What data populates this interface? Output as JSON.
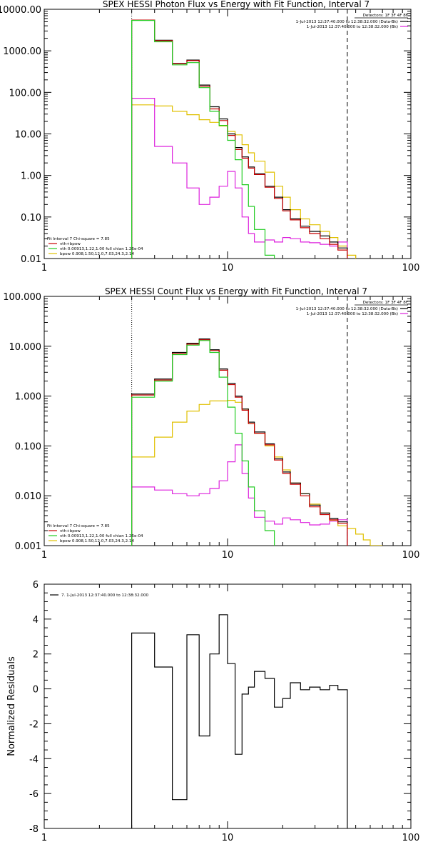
{
  "colors": {
    "data": "#000000",
    "total": "#c80000",
    "vth": "#22cc22",
    "bpow": "#e0c000",
    "bk": "#dd22dd"
  },
  "chart_data": [
    {
      "type": "line",
      "id": "photon",
      "title": "SPEX HESSI Photon Flux vs Energy with Fit Function, Interval 7",
      "xscale": "log",
      "yscale": "log",
      "xlim": [
        1,
        100
      ],
      "ylim": [
        0.01,
        10000
      ],
      "x_tick_labels": [
        "1",
        "10",
        "100"
      ],
      "y_tick_labels": [
        "10000.00",
        "1000.00",
        "100.00",
        "10.00",
        "1.00",
        "0.10",
        "0.01"
      ],
      "fit_range_kev": [
        3,
        45
      ],
      "legend_top_right": [
        "Detectors: 1F 3F 4F 8F",
        "1-Jul-2013 12:37:40.000 to 12:38:32.000 (Data-Bk)",
        "1-Jul-2013 12:37:40.000 to 12:38:32.000 (Bk)"
      ],
      "legend_bottom_left": [
        "Fit Interval 7   Chi-square = 7.85",
        "vth+bpow",
        "vth 0.00913,1.22,1.00  full chian 1.26e-04",
        "bpow 0.908,1.50,12.0,7.03,24.3,2.14"
      ],
      "bin_edges": [
        3,
        4,
        5,
        6,
        7,
        8,
        9,
        10,
        11,
        12,
        13,
        14,
        16,
        18,
        20,
        22,
        25,
        28,
        32,
        36,
        40,
        45,
        50
      ],
      "series": [
        {
          "name": "1-Jul-2013 12:37:40.000 to 12:38:32.000 (Data-Bk)",
          "color": "#000000",
          "values": [
            5500,
            1800,
            500,
            600,
            150,
            45,
            23,
            10,
            4.7,
            2.8,
            1.6,
            1.1,
            0.55,
            0.3,
            0.15,
            0.09,
            0.06,
            0.045,
            0.035,
            0.025,
            0.018,
            null
          ]
        },
        {
          "name": "vth+bpow",
          "color": "#c80000",
          "values": [
            5500,
            1750,
            490,
            580,
            140,
            40,
            21,
            9.2,
            4.2,
            2.6,
            1.5,
            1.05,
            0.52,
            0.28,
            0.14,
            0.085,
            0.055,
            0.04,
            0.03,
            0.022,
            0.016,
            null
          ]
        },
        {
          "name": "vth",
          "color": "#22cc22",
          "values": [
            5400,
            1650,
            460,
            520,
            130,
            35,
            16,
            7,
            2.4,
            0.6,
            0.18,
            0.05,
            0.012,
            null,
            null,
            null,
            null,
            null,
            null,
            null,
            null,
            null
          ]
        },
        {
          "name": "bpow",
          "color": "#e0c000",
          "values": [
            50,
            47,
            35,
            29,
            22,
            19,
            15.5,
            11.5,
            9.5,
            5.5,
            3.5,
            2.2,
            1.2,
            0.55,
            0.3,
            0.15,
            0.09,
            0.065,
            0.045,
            0.032,
            0.02,
            0.012
          ]
        },
        {
          "name": "1-Jul-2013 12:37:40.000 to 12:38:32.000 (Bk)",
          "color": "#dd22dd",
          "values": [
            72,
            5,
            2,
            0.5,
            0.2,
            0.3,
            0.55,
            1.25,
            0.5,
            0.1,
            0.04,
            0.025,
            0.028,
            0.025,
            0.032,
            0.03,
            0.025,
            0.024,
            0.022,
            0.02,
            0.025,
            null
          ]
        }
      ]
    },
    {
      "type": "line",
      "id": "count",
      "title": "SPEX HESSI Count Flux vs Energy with Fit Function, Interval 7",
      "xscale": "log",
      "yscale": "log",
      "xlim": [
        1,
        100
      ],
      "ylim": [
        0.001,
        100
      ],
      "x_tick_labels": [
        "1",
        "10",
        "100"
      ],
      "y_tick_labels": [
        "100.000",
        "10.000",
        "1.000",
        "0.100",
        "0.010",
        "0.001"
      ],
      "fit_range_kev": [
        3,
        45
      ],
      "legend_top_right": [
        "Detectors: 1F 3F 4F 8F",
        "1-Jul-2013 12:37:40.000 to 12:38:32.000 (Data-Bk)",
        "1-Jul-2013 12:37:40.000 to 12:38:32.000 (Bk)"
      ],
      "legend_bottom_left": [
        "Fit Interval 7   Chi-square = 7.85",
        "vth+bpow",
        "vth 0.00913,1.22,1.00  full chian 1.26e-04",
        "bpow 0.908,1.50,12.0,7.03,24.3,2.14"
      ],
      "bin_edges": [
        3,
        4,
        5,
        6,
        7,
        8,
        9,
        10,
        11,
        12,
        13,
        14,
        16,
        18,
        20,
        22,
        25,
        28,
        32,
        36,
        40,
        45,
        50,
        55,
        60,
        65,
        70
      ],
      "series": [
        {
          "name": "1-Jul-2013 12:37:40.000 to 12:38:32.000 (Data-Bk)",
          "color": "#000000",
          "values": [
            1.1,
            2.2,
            7.5,
            11.5,
            14,
            8.5,
            3.5,
            1.8,
            1.0,
            0.55,
            0.3,
            0.19,
            0.11,
            0.055,
            0.03,
            0.018,
            0.011,
            0.0065,
            0.0045,
            0.0035,
            0.003,
            null,
            null,
            null,
            null,
            null
          ]
        },
        {
          "name": "vth+bpow",
          "color": "#c80000",
          "values": [
            1.05,
            2.1,
            7.2,
            11,
            13.5,
            8.2,
            3.3,
            1.7,
            0.95,
            0.52,
            0.28,
            0.18,
            0.105,
            0.052,
            0.028,
            0.017,
            0.01,
            0.006,
            0.0042,
            0.0033,
            0.0028,
            null,
            null,
            null,
            null,
            null
          ]
        },
        {
          "name": "vth",
          "color": "#22cc22",
          "values": [
            0.95,
            2.0,
            6.8,
            10.5,
            13,
            7.5,
            2.4,
            0.6,
            0.18,
            0.05,
            0.015,
            0.005,
            0.002,
            null,
            null,
            null,
            null,
            null,
            null,
            null,
            null,
            null,
            null,
            null,
            null,
            null
          ]
        },
        {
          "name": "bpow",
          "color": "#e0c000",
          "values": [
            0.06,
            0.15,
            0.3,
            0.5,
            0.68,
            0.8,
            0.8,
            0.82,
            0.75,
            0.55,
            0.28,
            0.18,
            0.1,
            0.06,
            0.033,
            0.018,
            0.011,
            0.0068,
            0.0045,
            0.0032,
            0.0025,
            0.0022,
            0.0017,
            0.0013,
            0.001,
            0.0008
          ]
        },
        {
          "name": "1-Jul-2013 12:37:40.000 to 12:38:32.000 (Bk)",
          "color": "#dd22dd",
          "values": [
            0.015,
            0.013,
            0.011,
            0.01,
            0.011,
            0.014,
            0.02,
            0.048,
            0.105,
            0.028,
            0.009,
            0.0037,
            0.0031,
            0.0027,
            0.0036,
            0.0033,
            0.0029,
            0.0026,
            0.0027,
            0.0031,
            0.0033,
            null,
            null,
            null,
            null,
            null
          ]
        }
      ]
    },
    {
      "type": "line",
      "id": "residuals",
      "title": "",
      "xscale": "log",
      "yscale": "linear",
      "xlim": [
        1,
        100
      ],
      "ylim": [
        -8,
        6
      ],
      "ylabel": "Normalized Residuals",
      "x_tick_labels": [
        "1",
        "10",
        "100"
      ],
      "y_tick_labels": [
        "6",
        "4",
        "2",
        "0",
        "-2",
        "-4",
        "-6",
        "-8"
      ],
      "legend": "7.  1-Jul-2013 12:37:40.000 to 12:38:32.000",
      "bin_edges": [
        3,
        4,
        5,
        6,
        7,
        8,
        9,
        10,
        11,
        12,
        13,
        14,
        16,
        18,
        20,
        22,
        25,
        28,
        32,
        36,
        40,
        45
      ],
      "series": [
        {
          "name": "7.  1-Jul-2013 12:37:40.000 to 12:38:32.000",
          "color": "#000000",
          "values": [
            3.2,
            1.25,
            -6.35,
            3.1,
            -2.7,
            2.0,
            4.25,
            1.45,
            -3.75,
            -0.3,
            0.1,
            1.0,
            0.6,
            -1.05,
            -0.55,
            0.35,
            -0.05,
            0.1,
            -0.05,
            0.2,
            -0.05
          ]
        }
      ]
    }
  ]
}
